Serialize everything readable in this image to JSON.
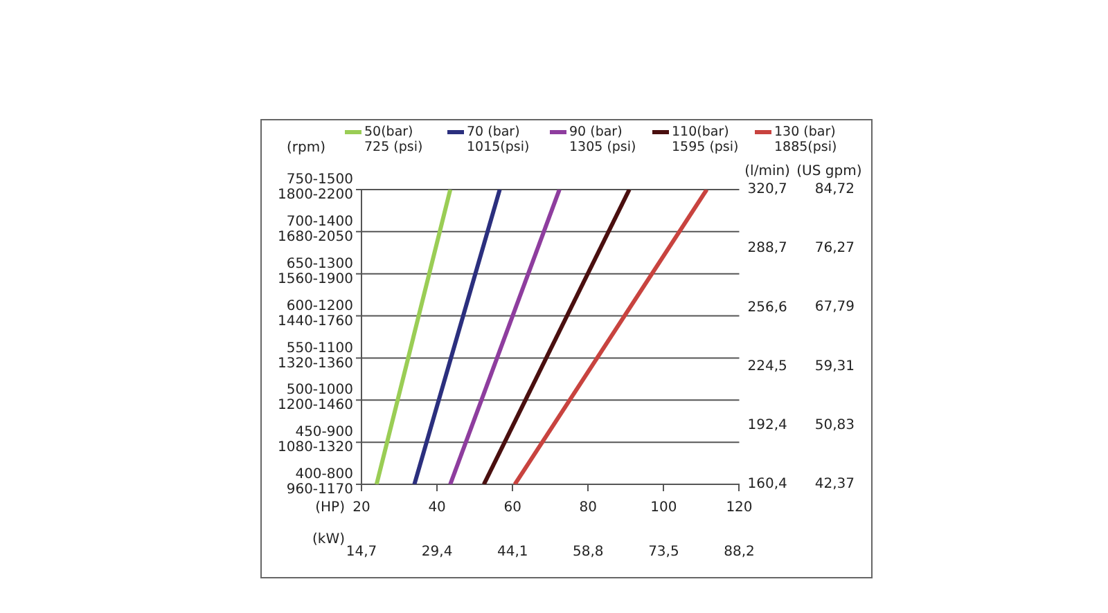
{
  "chart_data": {
    "type": "line",
    "xlabel": "(HP)",
    "ylabel": "(l/min)",
    "y2label": "(US gpm)",
    "x2label": "(kW)",
    "annotations": [
      "(rpm)",
      "400-800\n960-1170",
      "450-900\n1080-1320",
      "500-1000\n1200-1460",
      "550-1100\n1320-1360",
      "600-1200\n1440-1760",
      "650-1300\n1560-1900",
      "700-1400\n1680-2050",
      "750-1500\n1800-2200"
    ],
    "series": [
      {
        "name": "50(bar) 725 (psi)",
        "color": "#9acd55",
        "x": [
          24,
          43.5
        ],
        "values": [
          160.4,
          320.7
        ]
      },
      {
        "name": "70 (bar) 1015(psi)",
        "color": "#2b2f7e",
        "x": [
          34,
          56.6
        ],
        "values": [
          160.4,
          320.7
        ]
      },
      {
        "name": "90 (bar) 1305 (psi)",
        "color": "#8e3d9e",
        "x": [
          43.5,
          72.4
        ],
        "values": [
          160.4,
          320.7
        ]
      },
      {
        "name": "110(bar) 1595 (psi)",
        "color": "#4a0f0f",
        "x": [
          52.4,
          90.9
        ],
        "values": [
          160.4,
          320.7
        ]
      },
      {
        "name": "130 (bar) 1885(psi)",
        "color": "#c8433f",
        "x": [
          60.6,
          111.4
        ],
        "values": [
          160.4,
          320.7
        ]
      }
    ],
    "xlim": [
      20,
      120
    ],
    "xticks": [
      20,
      40,
      60,
      80,
      100,
      120
    ],
    "x2lim": [
      14.7,
      88.2
    ],
    "x2ticks": [
      {
        "value": 14.7,
        "label": "14,7"
      },
      {
        "value": 29.4,
        "label": "29,4"
      },
      {
        "value": 44.1,
        "label": "44,1"
      },
      {
        "value": 58.8,
        "label": "58,8"
      },
      {
        "value": 73.5,
        "label": "73,5"
      },
      {
        "value": 88.2,
        "label": "88,2"
      }
    ],
    "ylim": [
      160.4,
      320.7
    ],
    "yticks": [
      {
        "value": 160.4,
        "label": "160,4"
      },
      {
        "value": 192.4,
        "label": "192,4"
      },
      {
        "value": 224.5,
        "label": "224,5"
      },
      {
        "value": 256.6,
        "label": "256,6"
      },
      {
        "value": 288.7,
        "label": "288,7"
      },
      {
        "value": 320.7,
        "label": "320,7"
      }
    ],
    "y2lim": [
      42.37,
      84.72
    ],
    "y2ticks": [
      {
        "value": 42.37,
        "label": "42,37"
      },
      {
        "value": 50.83,
        "label": "50,83"
      },
      {
        "value": 59.31,
        "label": "59,31"
      },
      {
        "value": 67.79,
        "label": "67,79"
      },
      {
        "value": 76.27,
        "label": "76,27"
      },
      {
        "value": 84.72,
        "label": "84,72"
      }
    ],
    "ref_lines": [
      {
        "axis": "y",
        "value": 160.4
      },
      {
        "axis": "y",
        "value": 183.3
      },
      {
        "axis": "y",
        "value": 206.2
      },
      {
        "axis": "y",
        "value": 229.1
      },
      {
        "axis": "y",
        "value": 252.0
      },
      {
        "axis": "y",
        "value": 274.9
      },
      {
        "axis": "y",
        "value": 297.8
      },
      {
        "axis": "y",
        "value": 320.7
      }
    ],
    "legend": "top",
    "marker": "none",
    "line_style": "solid"
  }
}
